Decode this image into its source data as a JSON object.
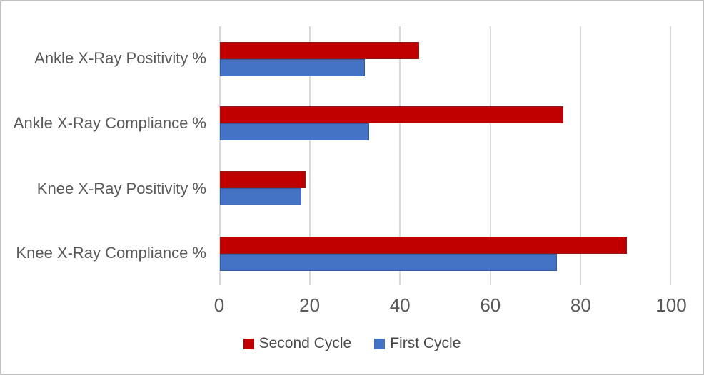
{
  "figure": {
    "background": "#ffffff",
    "border_color": "#c2c2c2",
    "gridline_color": "#d9d9d9",
    "text_color": "#595959"
  },
  "chart_data": {
    "type": "bar",
    "orientation": "horizontal",
    "categories": [
      "Ankle X-Ray Positivity %",
      "Ankle X-Ray Compliance %",
      "Knee X-Ray Positivity %",
      "Knee X-Ray Compliance %"
    ],
    "series": [
      {
        "name": "Second Cycle",
        "color": "#c00000",
        "border_color": "#8e1a1a",
        "values": [
          44,
          76,
          19,
          90
        ]
      },
      {
        "name": "First Cycle",
        "color": "#4472c4",
        "border_color": "#35599f",
        "values": [
          32,
          33,
          18,
          74.5
        ]
      }
    ],
    "xlim": [
      0,
      100
    ],
    "x_ticks": [
      "0",
      "20",
      "40",
      "60",
      "80",
      "100"
    ],
    "grid": true,
    "legend_position": "bottom"
  }
}
